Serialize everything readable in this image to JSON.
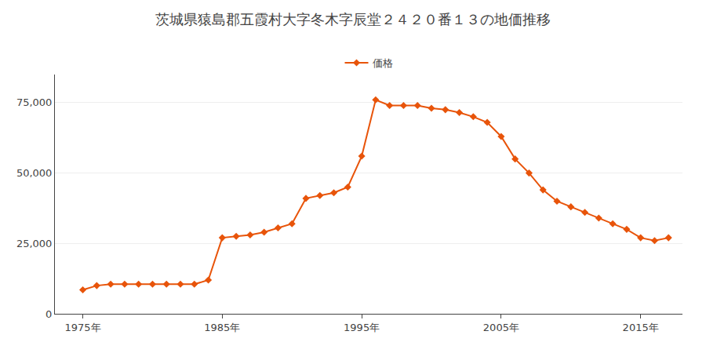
{
  "chart_data": {
    "type": "line",
    "title": "茨城県猿島郡五霞村大字冬木字辰堂２４２０番１３の地価推移",
    "x": [
      1975,
      1976,
      1977,
      1978,
      1979,
      1980,
      1981,
      1982,
      1983,
      1984,
      1985,
      1986,
      1987,
      1988,
      1989,
      1990,
      1991,
      1992,
      1993,
      1994,
      1995,
      1996,
      1997,
      1998,
      1999,
      2000,
      2001,
      2002,
      2003,
      2004,
      2005,
      2006,
      2007,
      2008,
      2009,
      2010,
      2011,
      2012,
      2013,
      2014,
      2015,
      2016,
      2017
    ],
    "series": [
      {
        "name": "価格",
        "color": "#E8540A",
        "marker": "diamond",
        "line_style": "solid",
        "values": [
          8500,
          10000,
          10500,
          10500,
          10500,
          10500,
          10500,
          10500,
          10500,
          12000,
          27000,
          27500,
          28000,
          29000,
          30500,
          32000,
          41000,
          42000,
          43000,
          45000,
          56000,
          76000,
          74000,
          74000,
          74000,
          73000,
          72500,
          71500,
          70000,
          68000,
          63000,
          55000,
          50000,
          44000,
          40000,
          38000,
          36000,
          34000,
          32000,
          30000,
          27000,
          26000,
          27000
        ]
      }
    ],
    "xlim": [
      1973,
      2018
    ],
    "xticks": [
      {
        "value": 1975,
        "label": "1975年"
      },
      {
        "value": 1985,
        "label": "1985年"
      },
      {
        "value": 1995,
        "label": "1995年"
      },
      {
        "value": 2005,
        "label": "2005年"
      },
      {
        "value": 2015,
        "label": "2015年"
      }
    ],
    "ylim": [
      0,
      85000
    ],
    "yticks": [
      0,
      {
        "value": 25000,
        "label": "25,000"
      },
      {
        "value": 50000,
        "label": "50,000"
      },
      {
        "value": 75000,
        "label": "75,000"
      }
    ],
    "grid": true,
    "legend": "top"
  }
}
